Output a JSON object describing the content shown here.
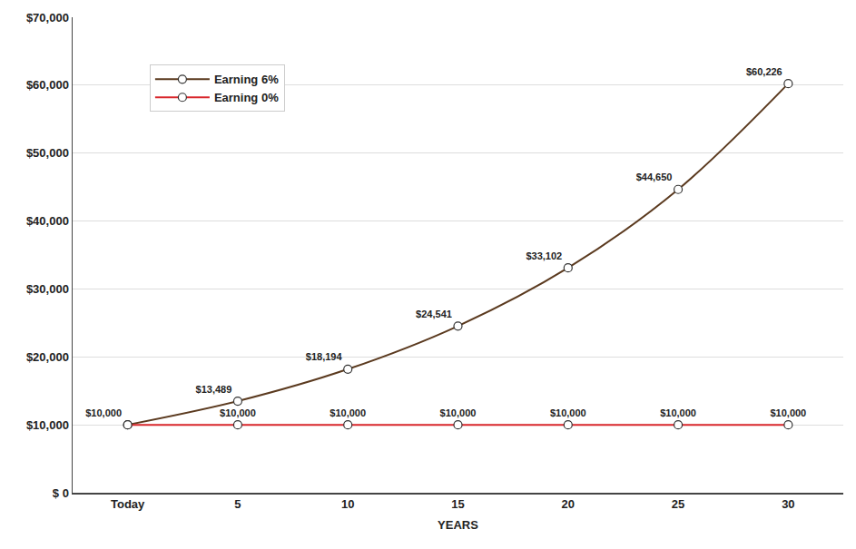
{
  "chart_data": {
    "type": "line",
    "x_label": "YEARS",
    "x": [
      0,
      5,
      10,
      15,
      20,
      25,
      30
    ],
    "series": [
      {
        "name": "Earning 6%",
        "color": "#5b3a1f",
        "marker": "circle",
        "line_style": "solid",
        "values": [
          10000,
          13489,
          18194,
          24541,
          33102,
          44650,
          60226
        ],
        "value_labels": [
          "$10,000",
          "$13,489",
          "$18,194",
          "$24,541",
          "$33,102",
          "$44,650",
          "$60,226"
        ]
      },
      {
        "name": "Earning 0%",
        "color": "#d8262b",
        "marker": "circle",
        "line_style": "solid",
        "values": [
          10000,
          10000,
          10000,
          10000,
          10000,
          10000,
          10000
        ],
        "value_labels": [
          null,
          "$10,000",
          "$10,000",
          "$10,000",
          "$10,000",
          "$10,000",
          "$10,000"
        ]
      }
    ],
    "xlim": [
      -2.5,
      32.5
    ],
    "xticks": [
      {
        "value": 0,
        "label": "Today"
      },
      5,
      10,
      15,
      20,
      25,
      30
    ],
    "ylim": [
      0,
      70000
    ],
    "yticks": [
      {
        "value": 0,
        "label": "$ 0"
      },
      {
        "value": 10000,
        "label": "$10,000"
      },
      {
        "value": 20000,
        "label": "$20,000"
      },
      {
        "value": 30000,
        "label": "$30,000"
      },
      {
        "value": 40000,
        "label": "$40,000"
      },
      {
        "value": 50000,
        "label": "$50,000"
      },
      {
        "value": 60000,
        "label": "$60,000"
      },
      {
        "value": 70000,
        "label": "$70,000"
      }
    ],
    "grid": true,
    "legend": "top left",
    "data_labels": true
  }
}
